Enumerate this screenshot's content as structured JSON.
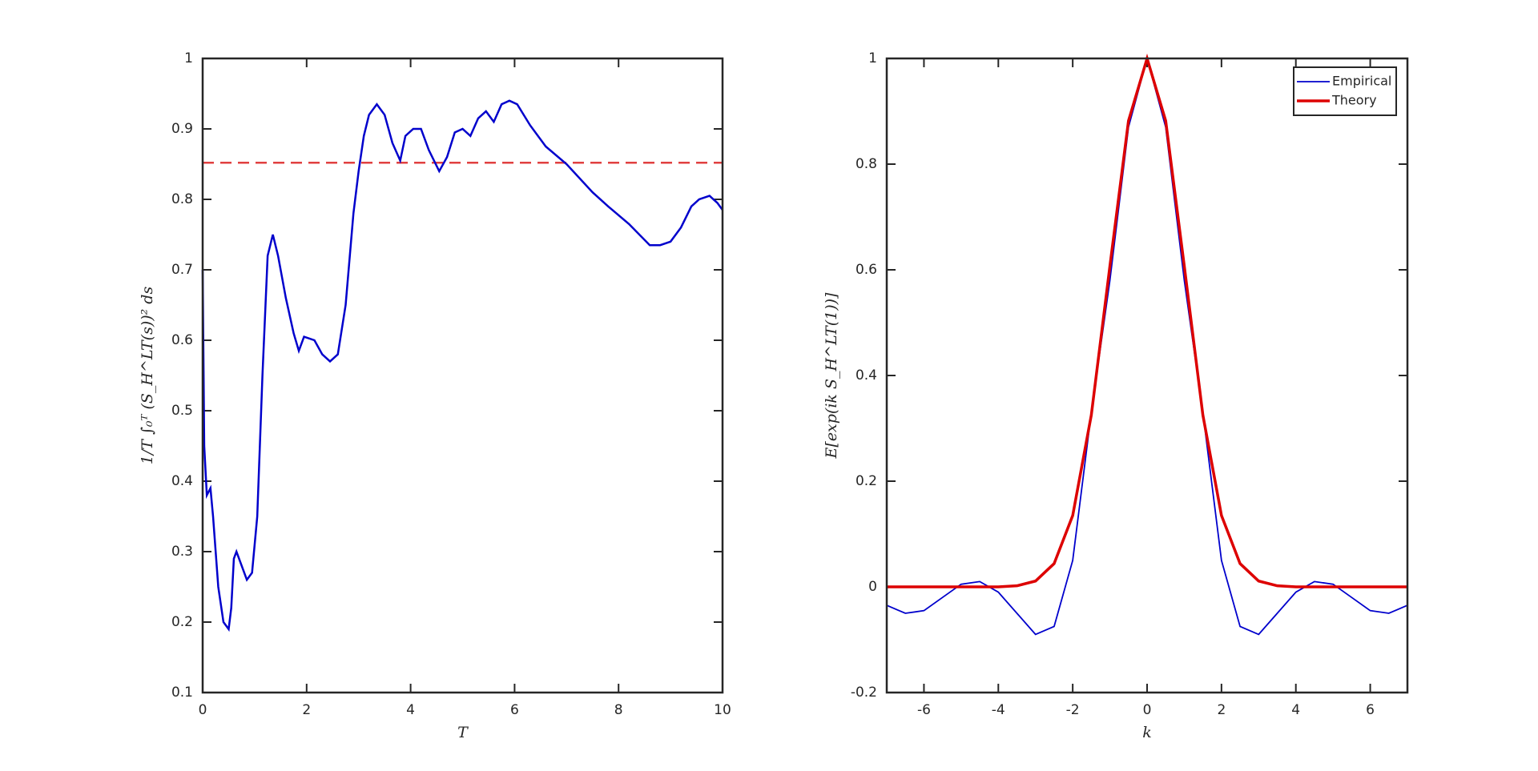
{
  "chart_data": [
    {
      "type": "line",
      "xlabel": "T",
      "ylabel": "1/T ∫₀ᵀ (S_H^LT(s))² ds",
      "x": [
        0,
        0.03,
        0.08,
        0.15,
        0.2,
        0.3,
        0.4,
        0.5,
        0.55,
        0.6,
        0.65,
        0.75,
        0.85,
        0.95,
        1.05,
        1.15,
        1.25,
        1.35,
        1.45,
        1.6,
        1.75,
        1.85,
        1.95,
        2.15,
        2.3,
        2.45,
        2.6,
        2.75,
        2.9,
        3.0,
        3.1,
        3.2,
        3.35,
        3.5,
        3.65,
        3.8,
        3.9,
        4.05,
        4.2,
        4.35,
        4.55,
        4.7,
        4.85,
        5.0,
        5.15,
        5.3,
        5.45,
        5.6,
        5.75,
        5.9,
        6.05,
        6.3,
        6.6,
        7.0,
        7.5,
        7.8,
        8.2,
        8.6,
        8.8,
        9.0,
        9.2,
        9.4,
        9.55,
        9.75,
        9.9,
        10
      ],
      "series": [
        {
          "name": "Empirical",
          "color": "#0000cc",
          "values": [
            0.7,
            0.45,
            0.38,
            0.39,
            0.35,
            0.25,
            0.2,
            0.19,
            0.22,
            0.29,
            0.3,
            0.28,
            0.26,
            0.27,
            0.35,
            0.55,
            0.72,
            0.75,
            0.72,
            0.66,
            0.61,
            0.585,
            0.605,
            0.6,
            0.58,
            0.57,
            0.58,
            0.65,
            0.78,
            0.84,
            0.89,
            0.92,
            0.935,
            0.92,
            0.88,
            0.855,
            0.89,
            0.9,
            0.9,
            0.87,
            0.84,
            0.86,
            0.895,
            0.9,
            0.89,
            0.915,
            0.925,
            0.91,
            0.935,
            0.94,
            0.935,
            0.905,
            0.875,
            0.85,
            0.81,
            0.79,
            0.765,
            0.735,
            0.735,
            0.74,
            0.76,
            0.79,
            0.8,
            0.805,
            0.795,
            0.785
          ]
        }
      ],
      "reference_line": {
        "value": 0.852,
        "color": "#e04040",
        "style": "dashed"
      },
      "xlim": [
        0,
        10
      ],
      "xticks": [
        0,
        2,
        4,
        6,
        8,
        10
      ],
      "ylim": [
        0.1,
        1
      ],
      "yticks": [
        0.1,
        0.2,
        0.3,
        0.4,
        0.5,
        0.6,
        0.7,
        0.8,
        0.9,
        1
      ]
    },
    {
      "type": "line",
      "xlabel": "k",
      "ylabel": "E[exp(ik S_H^LT(1))]",
      "x": [
        -7,
        -6.5,
        -6,
        -5.5,
        -5,
        -4.5,
        -4,
        -3.5,
        -3,
        -2.5,
        -2,
        -1.5,
        -1,
        -0.5,
        0,
        0.5,
        1,
        1.5,
        2,
        2.5,
        3,
        3.5,
        4,
        4.5,
        5,
        5.5,
        6,
        6.5,
        7
      ],
      "series": [
        {
          "name": "Empirical",
          "color": "#0000cc",
          "values": [
            -0.035,
            -0.05,
            -0.045,
            -0.02,
            0.005,
            0.01,
            -0.01,
            -0.05,
            -0.09,
            -0.075,
            0.05,
            0.33,
            0.58,
            0.87,
            1,
            0.87,
            0.58,
            0.33,
            0.05,
            -0.075,
            -0.09,
            -0.05,
            -0.01,
            0.01,
            0.005,
            -0.02,
            -0.045,
            -0.05,
            -0.035
          ]
        },
        {
          "name": "Theory",
          "color": "#dd0000",
          "values": [
            0,
            0,
            0,
            0,
            0,
            0,
            0,
            0.002,
            0.011,
            0.044,
            0.135,
            0.325,
            0.607,
            0.882,
            1,
            0.882,
            0.607,
            0.325,
            0.135,
            0.044,
            0.011,
            0.002,
            0,
            0,
            0,
            0,
            0,
            0,
            0
          ]
        }
      ],
      "legend": "northeast",
      "xlim": [
        -7,
        7
      ],
      "xticks": [
        -6,
        -4,
        -2,
        0,
        2,
        4,
        6
      ],
      "ylim": [
        -0.2,
        1
      ],
      "yticks": [
        -0.2,
        0,
        0.2,
        0.4,
        0.6,
        0.8,
        1
      ]
    }
  ]
}
